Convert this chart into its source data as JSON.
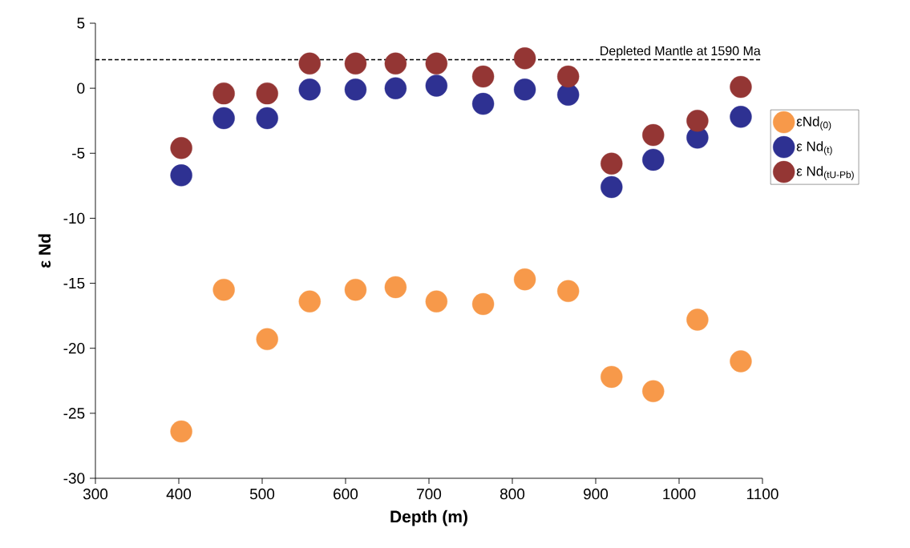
{
  "chart_data": {
    "type": "scatter",
    "xlabel": "Depth (m)",
    "ylabel": "ε Nd",
    "x": [
      403,
      454,
      506,
      557,
      612,
      660,
      709,
      765,
      815,
      867,
      919,
      969,
      1022,
      1074
    ],
    "series": [
      {
        "name": "εNd$_{(0)}$",
        "color": "#f7994a",
        "values": [
          -26.4,
          -15.5,
          -19.3,
          -16.4,
          -15.5,
          -15.3,
          -16.4,
          -16.6,
          -14.7,
          -15.6,
          -22.2,
          -23.3,
          -17.8,
          -21.0
        ]
      },
      {
        "name": "ε Nd$_{(t)}$",
        "color": "#2e3192",
        "values": [
          -6.7,
          -2.3,
          -2.3,
          -0.1,
          -0.1,
          0.0,
          0.2,
          -1.2,
          -0.1,
          -0.5,
          -7.6,
          -5.5,
          -3.8,
          -2.2
        ]
      },
      {
        "name": "ε Nd$_{(tU-Pb)}$",
        "color": "#943634",
        "values": [
          -4.6,
          -0.4,
          -0.4,
          1.9,
          1.9,
          1.9,
          1.9,
          0.9,
          2.3,
          0.9,
          -5.8,
          -3.6,
          -2.5,
          0.1
        ]
      }
    ],
    "xlim": [
      300,
      1100
    ],
    "xticks": [
      300,
      400,
      500,
      600,
      700,
      800,
      900,
      1000,
      1100
    ],
    "ylim": [
      -30,
      5
    ],
    "yticks": [
      -30,
      -25,
      -20,
      -15,
      -10,
      -5,
      0,
      5
    ],
    "ref_lines": [
      {
        "axis": "y",
        "value": 2.2,
        "label": "Depleted Mantle at 1590 Ma",
        "color": "#000000",
        "line_style": "dashed"
      }
    ],
    "marker": "circle",
    "legend": "right",
    "grid": false
  }
}
